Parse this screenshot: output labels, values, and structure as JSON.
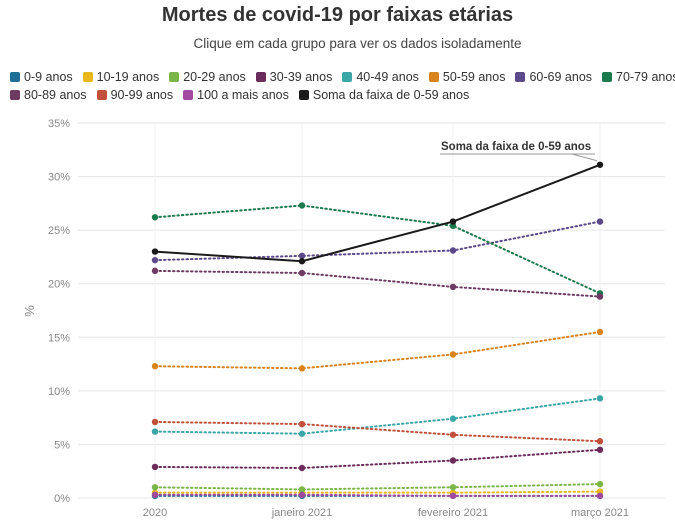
{
  "header": {
    "title": "Mortes de covid-19 por faixas etárias",
    "subtitle": "Clique em cada grupo para ver os dados isoladamente"
  },
  "chart_data": {
    "type": "line",
    "title": "Mortes de covid-19 por faixas etárias",
    "subtitle": "Clique em cada grupo para ver os dados isoladamente",
    "ylabel": "%",
    "xlabel": "",
    "categories": [
      "2020",
      "janeiro 2021",
      "fevereiro 2021",
      "março 2021"
    ],
    "yticks": [
      "0%",
      "5%",
      "10%",
      "15%",
      "20%",
      "25%",
      "30%",
      "35%"
    ],
    "ylim": [
      0,
      35
    ],
    "grid": "horizontal",
    "legend_position": "top",
    "series": [
      {
        "name": "0-9 anos",
        "color": "#1f6f94",
        "style": "dotted",
        "values": [
          0.2,
          0.2,
          0.2,
          0.2
        ]
      },
      {
        "name": "10-19 anos",
        "color": "#e8b71c",
        "style": "dotted",
        "values": [
          0.5,
          0.5,
          0.5,
          0.6
        ]
      },
      {
        "name": "20-29 anos",
        "color": "#7ab648",
        "style": "dotted",
        "values": [
          1.0,
          0.8,
          1.0,
          1.3
        ]
      },
      {
        "name": "30-39 anos",
        "color": "#6b2c5c",
        "style": "dotted",
        "values": [
          2.9,
          2.8,
          3.5,
          4.5
        ]
      },
      {
        "name": "40-49 anos",
        "color": "#3ba6a8",
        "style": "dotted",
        "values": [
          6.2,
          6.0,
          7.4,
          9.3
        ]
      },
      {
        "name": "50-59 anos",
        "color": "#d9831f",
        "style": "dotted",
        "values": [
          12.3,
          12.1,
          13.4,
          15.5
        ]
      },
      {
        "name": "60-69 anos",
        "color": "#5b4a8b",
        "style": "dotted",
        "values": [
          22.2,
          22.6,
          23.1,
          25.8
        ]
      },
      {
        "name": "70-79 anos",
        "color": "#1b7a4e",
        "style": "dotted",
        "values": [
          26.2,
          27.3,
          25.4,
          19.1
        ]
      },
      {
        "name": "80-89 anos",
        "color": "#6d3a62",
        "style": "dotted",
        "values": [
          21.2,
          21.0,
          19.7,
          18.8
        ]
      },
      {
        "name": "90-99 anos",
        "color": "#c0503a",
        "style": "dotted",
        "values": [
          7.1,
          6.9,
          5.9,
          5.3
        ]
      },
      {
        "name": "100 a mais anos",
        "color": "#a04aa0",
        "style": "dotted",
        "values": [
          0.3,
          0.3,
          0.2,
          0.2
        ]
      },
      {
        "name": "Soma da faixa de 0-59 anos",
        "color": "#1a1a1a",
        "style": "solid",
        "values": [
          23.0,
          22.1,
          25.8,
          31.1
        ]
      }
    ],
    "annotation": {
      "text": "Soma da faixa de 0-59 anos",
      "series": "Soma da faixa de 0-59 anos",
      "category": "março 2021"
    }
  }
}
